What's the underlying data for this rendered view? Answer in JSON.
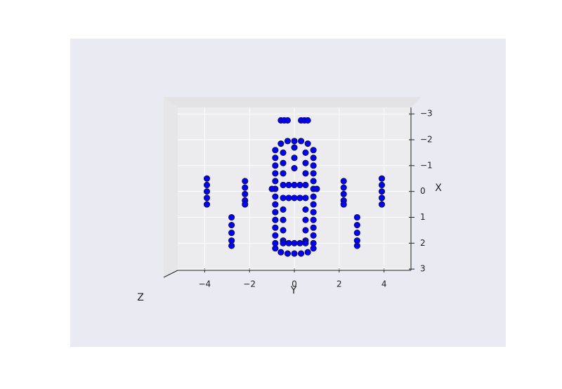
{
  "chart_data": {
    "type": "scatter",
    "xlabel": "Y",
    "ylabel": "X",
    "zlabel": "Z",
    "color": "#0000ff",
    "grid": true,
    "yinvert": true,
    "xlim": [
      -5.2,
      5.2
    ],
    "ylim": [
      -3.25,
      3.05
    ],
    "xticks": [
      {
        "value": -4,
        "label": "−4"
      },
      {
        "value": -2,
        "label": "−2"
      },
      0,
      2,
      4
    ],
    "yticks": [
      {
        "value": -3,
        "label": "−3"
      },
      {
        "value": -2,
        "label": "−2"
      },
      {
        "value": -1,
        "label": "−1"
      },
      0,
      1,
      2,
      3
    ],
    "x": [
      -0.6,
      -0.45,
      -0.3,
      0.3,
      0.45,
      0.6,
      -3.9,
      -3.9,
      -3.9,
      -3.9,
      -3.9,
      3.9,
      3.9,
      3.9,
      3.9,
      3.9,
      -2.2,
      -2.2,
      -2.2,
      -2.2,
      -2.2,
      2.2,
      2.2,
      2.2,
      2.2,
      2.2,
      -2.8,
      -2.8,
      -2.8,
      -2.8,
      -2.8,
      2.8,
      2.8,
      2.8,
      2.8,
      2.8,
      -0.85,
      -0.85,
      -0.85,
      -0.85,
      -0.85,
      -0.85,
      -0.85,
      -0.85,
      -0.85,
      -0.85,
      -0.85,
      -0.85,
      -0.85,
      -0.85,
      0.85,
      0.85,
      0.85,
      0.85,
      0.85,
      0.85,
      0.85,
      0.85,
      0.85,
      0.85,
      0.85,
      0.85,
      0.85,
      0.85,
      -0.6,
      -0.3,
      0,
      0.3,
      0.6,
      -0.6,
      -0.3,
      0,
      0.3,
      0.6,
      -0.5,
      -0.5,
      -0.5,
      -0.5,
      -0.5,
      -0.5,
      -0.5,
      0.5,
      0.5,
      0.5,
      0.5,
      0.5,
      0.5,
      0.5,
      0,
      0,
      0,
      -0.5,
      -0.25,
      0,
      0.25,
      0.5,
      -0.5,
      -0.25,
      0,
      0.25,
      0.5,
      -0.5,
      -0.25,
      0,
      0.25,
      0.5,
      -1.0,
      1.0
    ],
    "y": [
      -2.75,
      -2.75,
      -2.75,
      -2.75,
      -2.75,
      -2.75,
      -0.5,
      -0.25,
      0,
      0.25,
      0.5,
      -0.5,
      -0.25,
      0,
      0.25,
      0.5,
      -0.4,
      -0.15,
      0.1,
      0.35,
      0.5,
      -0.4,
      -0.15,
      0.1,
      0.35,
      0.5,
      1,
      1.3,
      1.6,
      1.9,
      2.1,
      1,
      1.3,
      1.6,
      1.9,
      2.1,
      -1.6,
      -1.3,
      -1,
      -0.7,
      -0.4,
      -0.1,
      0.2,
      0.5,
      0.8,
      1.1,
      1.4,
      1.7,
      2,
      2.2,
      -1.6,
      -1.3,
      -1,
      -0.7,
      -0.4,
      -0.1,
      0.2,
      0.5,
      0.8,
      1.1,
      1.4,
      1.7,
      2,
      2.2,
      -1.85,
      -1.95,
      -1.95,
      -1.95,
      -1.85,
      2.35,
      2.4,
      2.4,
      2.4,
      2.35,
      -1.5,
      -1.1,
      -0.7,
      0.7,
      1.1,
      1.5,
      1.9,
      -1.5,
      -1.1,
      -0.7,
      0.7,
      1.1,
      1.5,
      1.9,
      -1.7,
      -1.3,
      -0.9,
      -0.25,
      -0.25,
      -0.25,
      -0.25,
      -0.25,
      0.25,
      0.25,
      0.25,
      0.25,
      0.25,
      2,
      2,
      2,
      2,
      2,
      -0.1,
      -0.1
    ]
  }
}
